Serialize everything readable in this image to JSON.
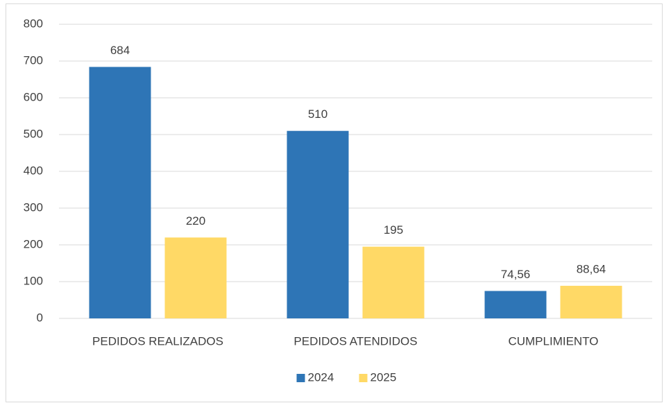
{
  "chart_data": {
    "type": "bar",
    "categories": [
      "PEDIDOS REALIZADOS",
      "PEDIDOS ATENDIDOS",
      "CUMPLIMIENTO"
    ],
    "series": [
      {
        "name": "2024",
        "color": "#2e75b6",
        "values": [
          684,
          510,
          74.56
        ],
        "value_labels": [
          "684",
          "510",
          "74,56"
        ]
      },
      {
        "name": "2025",
        "color": "#ffd966",
        "values": [
          220,
          195,
          88.64
        ],
        "value_labels": [
          "220",
          "195",
          "88,64"
        ]
      }
    ],
    "ylim": [
      0,
      800
    ],
    "yticks": [
      0,
      100,
      200,
      300,
      400,
      500,
      600,
      700,
      800
    ],
    "grid": true,
    "legend": "bottom"
  }
}
